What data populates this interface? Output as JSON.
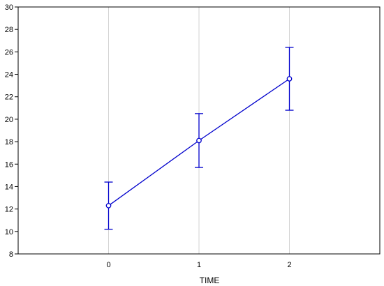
{
  "chart_data": {
    "type": "line",
    "title": "",
    "xlabel": "TIME",
    "ylabel": "",
    "x": [
      0,
      1,
      2
    ],
    "xlim": [
      -1,
      3
    ],
    "ylim": [
      8,
      30
    ],
    "x_ticks": [
      0,
      1,
      2
    ],
    "y_ticks": [
      8,
      10,
      12,
      14,
      16,
      18,
      20,
      22,
      24,
      26,
      28,
      30
    ],
    "grid": true,
    "legend": "none",
    "series": [
      {
        "values": [
          12.3,
          18.1,
          23.6
        ],
        "error_low": [
          10.2,
          15.7,
          20.8
        ],
        "error_high": [
          14.4,
          20.5,
          26.4
        ],
        "color": "#0000cc",
        "marker": "open-circle"
      }
    ]
  },
  "colors": {
    "grid": "#d3d3d3",
    "axis": "#000000",
    "series": "#0000cc"
  }
}
